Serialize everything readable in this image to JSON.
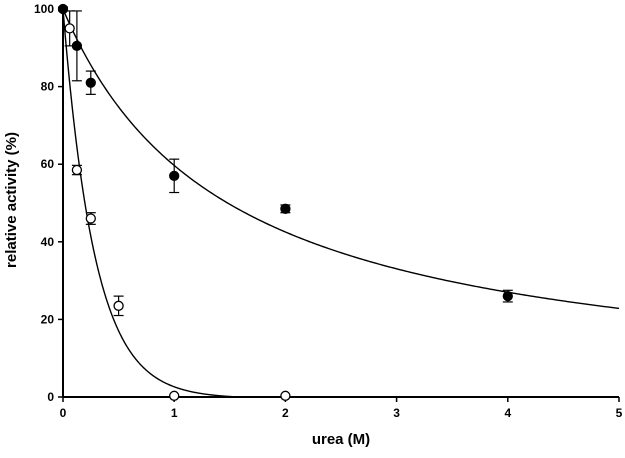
{
  "chart_data": {
    "type": "scatter",
    "xlabel": "urea (M)",
    "ylabel": "relative activity (%)",
    "xlim": [
      0,
      5
    ],
    "ylim": [
      0,
      100
    ],
    "xticks": [
      "0",
      "1",
      "2",
      "3",
      "4",
      "5"
    ],
    "yticks": [
      "0",
      "20",
      "40",
      "60",
      "80",
      "100"
    ],
    "grid": false,
    "legend": "none",
    "series": [
      {
        "marker": "filled-circle",
        "color": "#000000",
        "points": [
          {
            "x": 0.0,
            "y": 100,
            "err": 0.5
          },
          {
            "x": 0.125,
            "y": 90.5,
            "err": 9
          },
          {
            "x": 0.25,
            "y": 81,
            "err": 3
          },
          {
            "x": 1.0,
            "y": 57,
            "err": 4.3
          },
          {
            "x": 2.0,
            "y": 48.5,
            "err": 1
          },
          {
            "x": 4.0,
            "y": 26,
            "err": 1.5
          }
        ],
        "fit": {
          "type": "hyperbolic-decay",
          "k_half": 1.48
        }
      },
      {
        "marker": "open-circle",
        "color": "#000000",
        "points": [
          {
            "x": 0.06,
            "y": 95,
            "err": 4.5
          },
          {
            "x": 0.125,
            "y": 58.5,
            "err": 1.2
          },
          {
            "x": 0.25,
            "y": 46,
            "err": 1.5
          },
          {
            "x": 0.5,
            "y": 23.5,
            "err": 2.5
          },
          {
            "x": 1.0,
            "y": 0.3,
            "err": 0
          },
          {
            "x": 2.0,
            "y": 0.3,
            "err": 0
          }
        ],
        "fit": {
          "type": "exponential-decay-to-zero",
          "k": 3.5,
          "x_end": 1.58
        }
      }
    ]
  }
}
